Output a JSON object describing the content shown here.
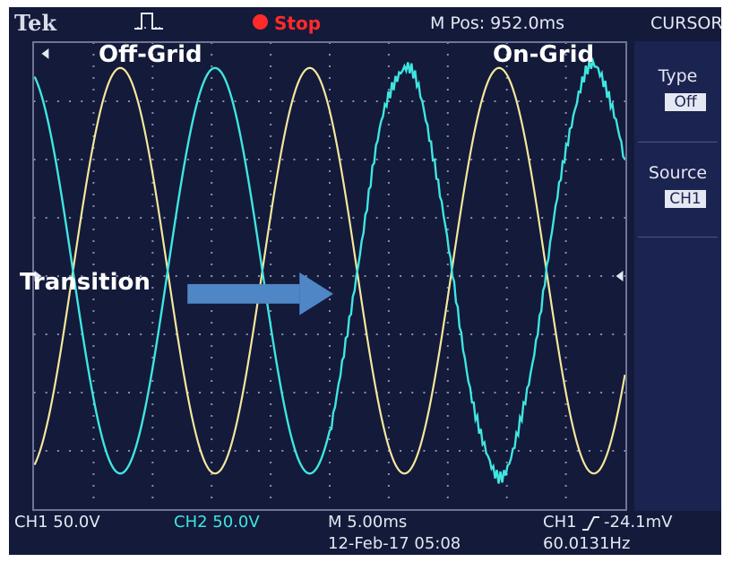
{
  "header": {
    "brand": "Tek",
    "trigger_icon": "single-pulse-icon",
    "status": "Stop",
    "position": "M Pos: 952.0ms",
    "menu_title": "CURSOR"
  },
  "annotations": {
    "off_grid": "Off-Grid",
    "on_grid": "On-Grid",
    "transition": "Transition"
  },
  "side_menu": {
    "type_label": "Type",
    "type_value": "Off",
    "source_label": "Source",
    "source_value": "CH1"
  },
  "footer": {
    "ch1_scale": "CH1  50.0V",
    "ch2_scale": "CH2  50.0V",
    "timebase": "M 5.00ms",
    "trigger_source": "CH1",
    "trigger_level": "-24.1mV",
    "date_time": "12-Feb-17 05:08",
    "frequency": "60.0131Hz"
  },
  "colors": {
    "background": "#141a3a",
    "ch1": "#f4e89c",
    "ch2": "#3ee6e0",
    "stop": "#ff2a2a",
    "arrow": "#4f86c6"
  },
  "chart_data": {
    "type": "line",
    "grid": true,
    "series": [
      {
        "name": "CH1",
        "period_ms": 16.66,
        "amplitude_div": 3.6,
        "phase_deg": 0
      },
      {
        "name": "CH2",
        "period_ms": 16.66,
        "amplitude_div": 3.6,
        "phase_deg": 180,
        "noisy_after_transition": true
      }
    ]
  }
}
